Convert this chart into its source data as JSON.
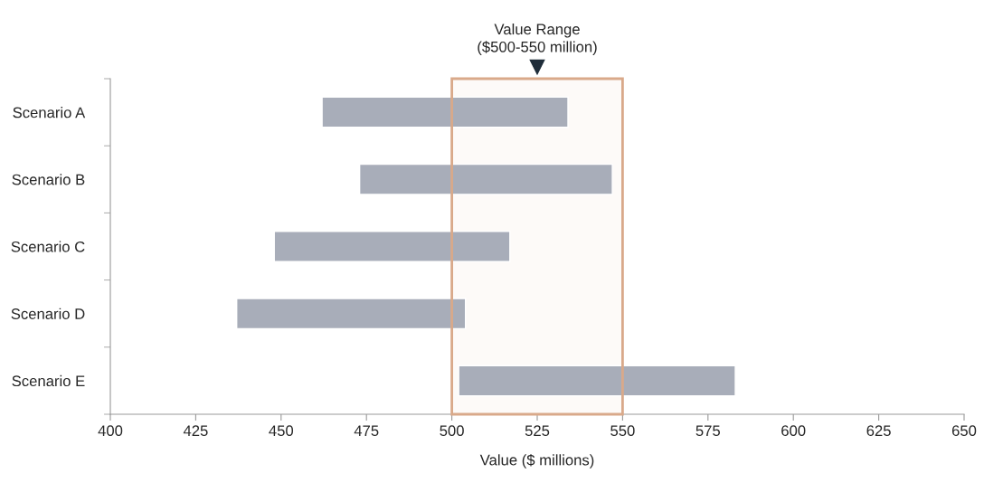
{
  "chart_data": {
    "type": "bar",
    "orientation": "horizontal",
    "xlabel": "Value ($ millions)",
    "categories": [
      "Scenario A",
      "Scenario B",
      "Scenario C",
      "Scenario D",
      "Scenario E"
    ],
    "base": [
      462,
      473,
      448,
      437,
      502
    ],
    "values": [
      72,
      74,
      69,
      67,
      81
    ],
    "color": "#a8adb9",
    "xlim": [
      400,
      650
    ],
    "xticks": [
      400,
      425,
      450,
      475,
      500,
      525,
      550,
      575,
      600,
      625,
      650
    ],
    "bands": [
      {
        "axis": "x",
        "from": 500,
        "to": 550,
        "label": "Value Range\n($500-550 million)",
        "color": "#d9a98a"
      }
    ],
    "grid": false,
    "legend": false
  }
}
